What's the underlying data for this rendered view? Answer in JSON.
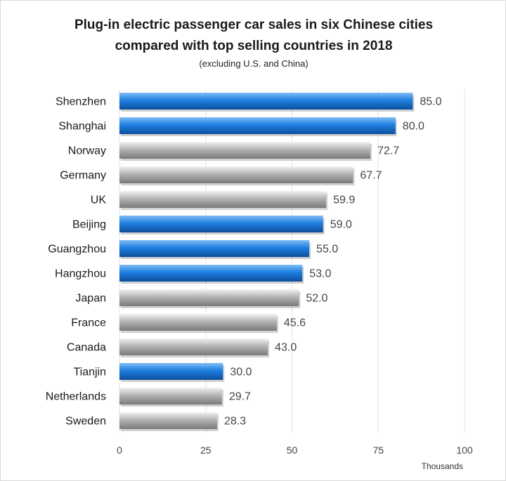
{
  "chart_data": {
    "type": "bar",
    "orientation": "horizontal",
    "title_line1": "Plug-in electric passenger car sales in six Chinese cities",
    "title_line2": "compared with top selling countries in 2018",
    "subtitle": "(excluding U.S. and China)",
    "x_unit_label": "Thousands",
    "xlim": [
      0,
      100
    ],
    "x_ticks": [
      0,
      25,
      50,
      75,
      100
    ],
    "grid": true,
    "legend": "none",
    "categories": [
      "Shenzhen",
      "Shanghai",
      "Norway",
      "Germany",
      "UK",
      "Beijing",
      "Guangzhou",
      "Hangzhou",
      "Japan",
      "France",
      "Canada",
      "Tianjin",
      "Netherlands",
      "Sweden"
    ],
    "values": [
      85.0,
      80.0,
      72.7,
      67.7,
      59.9,
      59.0,
      55.0,
      53.0,
      52.0,
      45.6,
      43.0,
      30.0,
      29.7,
      28.3
    ],
    "value_labels": [
      "85.0",
      "80.0",
      "72.7",
      "67.7",
      "59.9",
      "59.0",
      "55.0",
      "53.0",
      "52.0",
      "45.6",
      "43.0",
      "30.0",
      "29.7",
      "28.3"
    ],
    "bar_group": [
      "city",
      "city",
      "country",
      "country",
      "country",
      "city",
      "city",
      "city",
      "country",
      "country",
      "country",
      "city",
      "country",
      "country"
    ],
    "colors": {
      "city": "#1e7fe0",
      "city_light": "#7fbdf5",
      "city_dark": "#0d4f9e",
      "country": "#b4b4b4",
      "country_light": "#f2f2f2",
      "country_dark": "#7a7a7a",
      "grid": "#e3e3e3"
    }
  }
}
